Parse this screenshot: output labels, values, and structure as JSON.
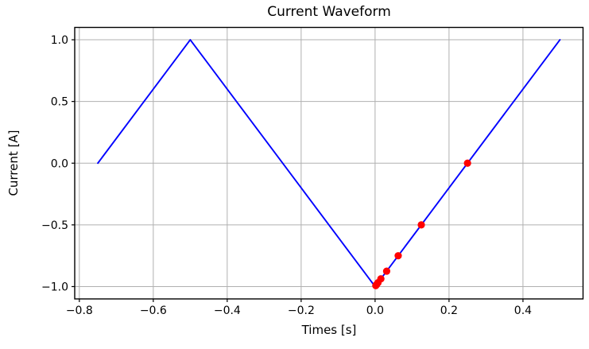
{
  "figure": {
    "background": "#ffffff",
    "text_color": "#000000"
  },
  "chart_data": {
    "type": "line",
    "title": "Current Waveform",
    "xlabel": "Times [s]",
    "ylabel": "Current [A]",
    "xlim": [
      -0.8125,
      0.5625
    ],
    "ylim": [
      -1.1,
      1.1
    ],
    "xticks": [
      -0.8,
      -0.6,
      -0.4,
      -0.2,
      0.0,
      0.2,
      0.4
    ],
    "xtick_labels": [
      "−0.8",
      "−0.6",
      "−0.4",
      "−0.2",
      "0.0",
      "0.2",
      "0.4"
    ],
    "yticks": [
      -1.0,
      -0.5,
      0.0,
      0.5,
      1.0
    ],
    "ytick_labels": [
      "−1.0",
      "−0.5",
      "0.0",
      "0.5",
      "1.0"
    ],
    "grid": true,
    "grid_color": "#b0b0b0",
    "spine_color": "#000000",
    "legend": "none",
    "series": [
      {
        "name": "waveform",
        "kind": "line",
        "color": "#0000ff",
        "line_width": 1.9,
        "x": [
          -0.75,
          -0.5,
          0.0,
          0.5
        ],
        "y": [
          0.0,
          1.0,
          -1.0,
          1.0
        ]
      },
      {
        "name": "samples",
        "kind": "scatter",
        "color": "#ff0000",
        "marker_radius": 4.6,
        "x": [
          0.25,
          0.125,
          0.0625,
          0.03125,
          0.015625,
          0.0078125,
          0.00390625,
          0.001953125
        ],
        "y": [
          0.0,
          -0.5,
          -0.75,
          -0.875,
          -0.9375,
          -0.96875,
          -0.984375,
          -0.9921875
        ]
      }
    ]
  }
}
